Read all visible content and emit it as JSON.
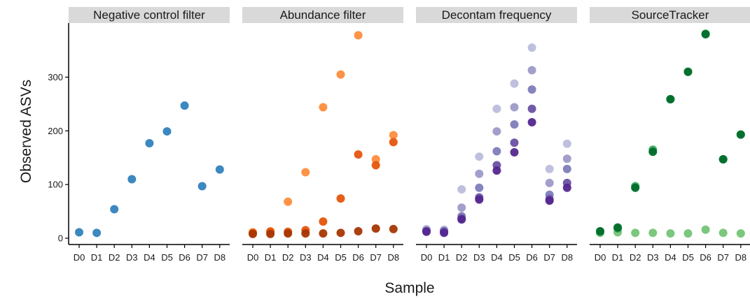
{
  "chart_data": {
    "type": "scatter",
    "xlabel": "Sample",
    "ylabel": "Observed ASVs",
    "categories": [
      "D0",
      "D1",
      "D2",
      "D3",
      "D4",
      "D5",
      "D6",
      "D7",
      "D8"
    ],
    "ylim": [
      0,
      390
    ],
    "yticks": [
      0,
      100,
      200,
      300
    ],
    "grid": false,
    "legend": "none",
    "panels": [
      {
        "title": "Negative control filter",
        "series": [
          {
            "color": "#3182bd",
            "values": [
              11,
              10,
              54,
              110,
              177,
              199,
              247,
              97,
              128
            ]
          }
        ]
      },
      {
        "title": "Abundance filter",
        "series": [
          {
            "color": "#fd8d3c",
            "values": [
              11,
              13,
              68,
              123,
              244,
              305,
              378,
              147,
              192
            ]
          },
          {
            "color": "#e6550d",
            "values": [
              10,
              12,
              12,
              15,
              31,
              74,
              156,
              136,
              179
            ]
          },
          {
            "color": "#a63603",
            "values": [
              8,
              8,
              9,
              9,
              9,
              10,
              13,
              18,
              17
            ]
          }
        ]
      },
      {
        "title": "Decontam frequency",
        "series": [
          {
            "color": "#bcbddc",
            "values": [
              17,
              16,
              91,
              152,
              241,
              288,
              355,
              129,
              176
            ]
          },
          {
            "color": "#9e9ac8",
            "values": [
              15,
              14,
              57,
              120,
              199,
              244,
              313,
              103,
              148
            ]
          },
          {
            "color": "#807dba",
            "values": [
              14,
              13,
              41,
              94,
              162,
              212,
              277,
              81,
              129
            ]
          },
          {
            "color": "#6a51a3",
            "values": [
              13,
              12,
              37,
              76,
              136,
              178,
              241,
              73,
              103
            ]
          },
          {
            "color": "#54278f",
            "values": [
              12,
              10,
              35,
              72,
              126,
              160,
              216,
              70,
              94
            ]
          }
        ]
      },
      {
        "title": "SourceTracker",
        "series": [
          {
            "color": "#74c476",
            "values": [
              10,
              11,
              10,
              10,
              9,
              9,
              16,
              10,
              9
            ]
          },
          {
            "color": "#41ab5d",
            "values": [
              12,
              18,
              97,
              165,
              259,
              310,
              381,
              147,
              193
            ]
          },
          {
            "color": "#006d2c",
            "values": [
              13,
              20,
              94,
              161,
              259,
              310,
              380,
              147,
              193
            ]
          }
        ]
      }
    ]
  }
}
